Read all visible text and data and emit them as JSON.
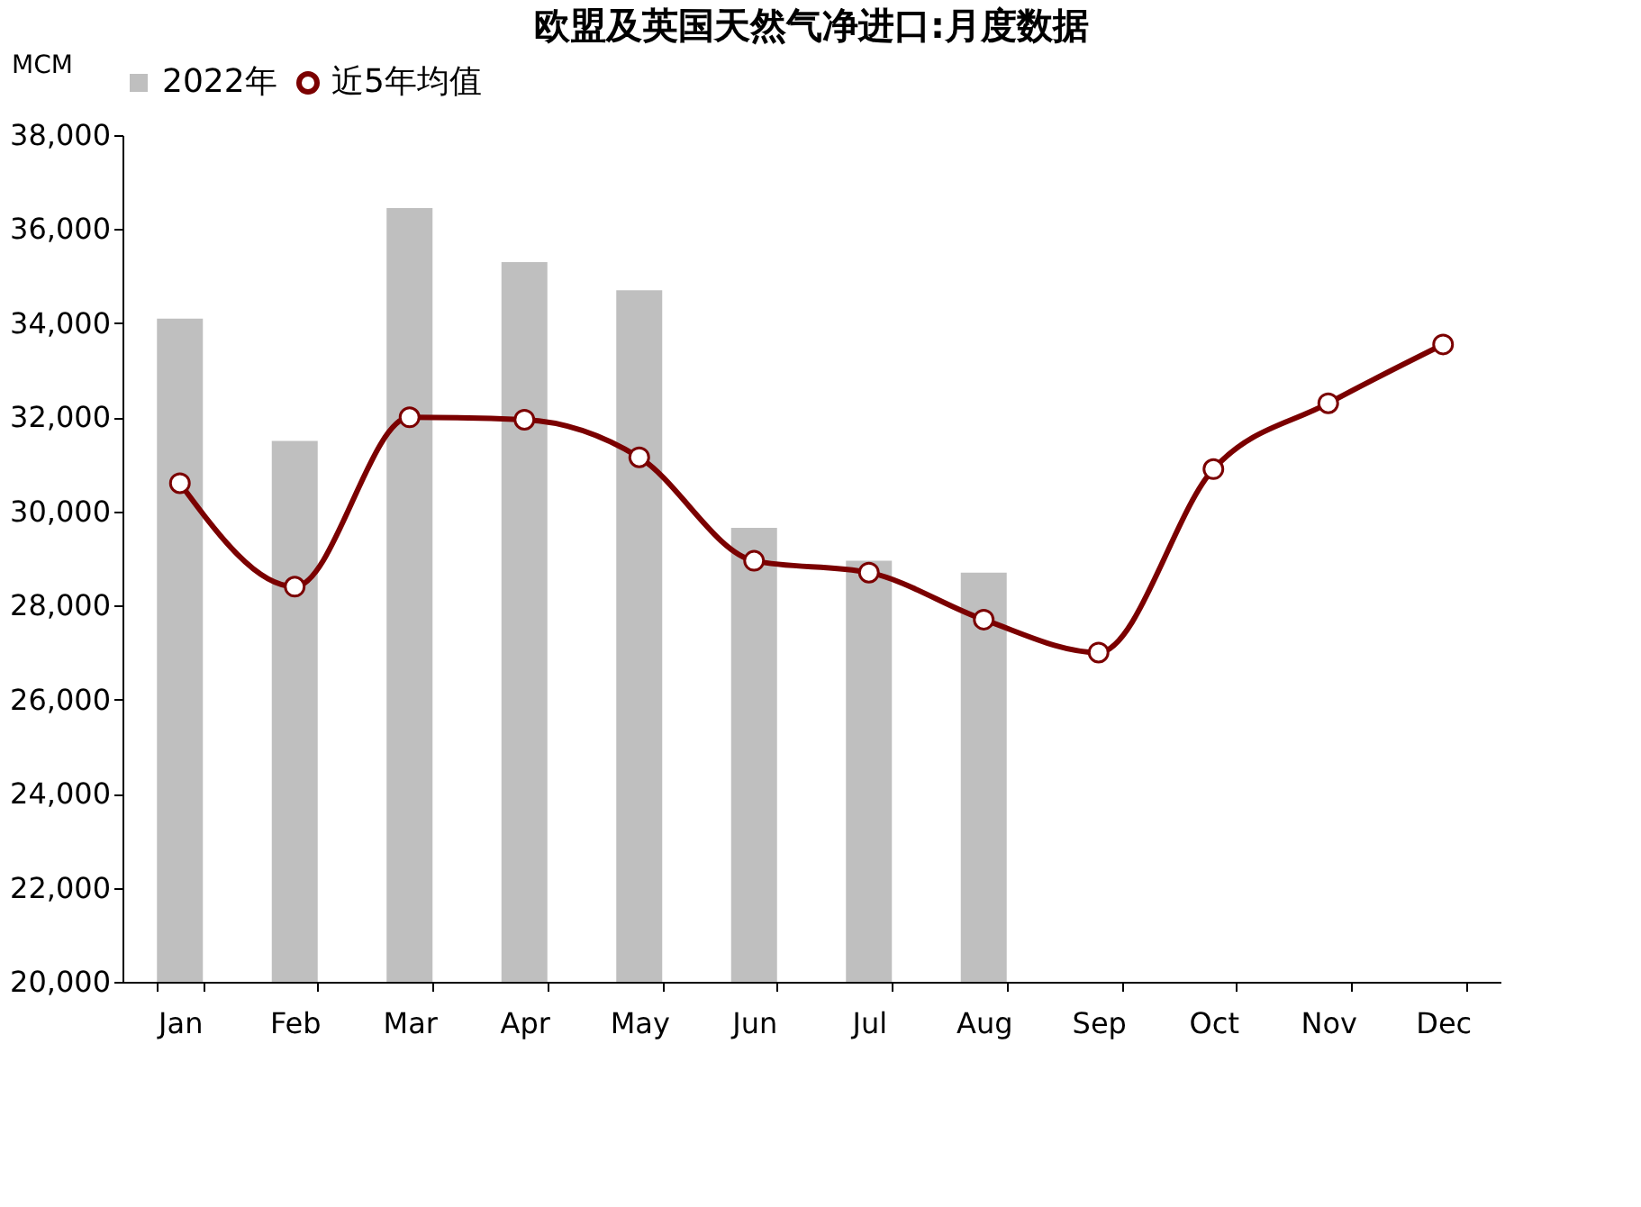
{
  "chart_data": {
    "type": "bar",
    "title": "欧盟及英国天然气净进口:月度数据",
    "ylabel": "MCM",
    "categories": [
      "Jan",
      "Feb",
      "Mar",
      "Apr",
      "May",
      "Jun",
      "Jul",
      "Aug",
      "Sep",
      "Oct",
      "Nov",
      "Dec"
    ],
    "series": [
      {
        "name": "2022年",
        "color": "#bfbfbf",
        "values": [
          34100,
          31500,
          36450,
          35300,
          34700,
          29650,
          28950,
          28700,
          null,
          null,
          null,
          null
        ]
      },
      {
        "name": "近5年均值",
        "type": "line",
        "color": "#7b0000",
        "marker": "circle",
        "values": [
          30600,
          28400,
          32000,
          31950,
          31150,
          28950,
          28700,
          27700,
          27000,
          30900,
          32300,
          33550
        ]
      }
    ],
    "ylim": [
      20000,
      38000
    ],
    "yticks": [
      {
        "value": 20000,
        "label": "20,000"
      },
      {
        "value": 22000,
        "label": "22,000"
      },
      {
        "value": 24000,
        "label": "24,000"
      },
      {
        "value": 26000,
        "label": "26,000"
      },
      {
        "value": 28000,
        "label": "28,000"
      },
      {
        "value": 30000,
        "label": "30,000"
      },
      {
        "value": 32000,
        "label": "32,000"
      },
      {
        "value": 34000,
        "label": "34,000"
      },
      {
        "value": 36000,
        "label": "36,000"
      },
      {
        "value": 38000,
        "label": "38,000"
      }
    ],
    "grid": false,
    "legend": "top"
  }
}
